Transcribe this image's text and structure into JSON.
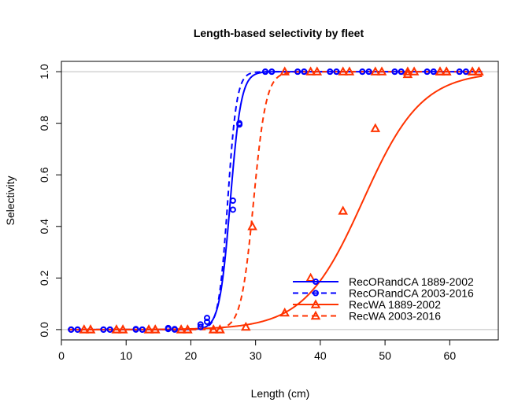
{
  "chart_data": {
    "type": "line",
    "title": "Length-based selectivity by fleet",
    "xlabel": "Length (cm)",
    "ylabel": "Selectivity",
    "xlim": [
      0,
      67.5
    ],
    "ylim": [
      -0.04,
      1.04
    ],
    "xticks": [
      "0",
      "10",
      "20",
      "30",
      "40",
      "50",
      "60"
    ],
    "yticks": [
      "0.0",
      "0.2",
      "0.4",
      "0.6",
      "0.8",
      "1.0"
    ],
    "reference_lines": {
      "y": [
        0,
        1
      ],
      "color": "#bebebe"
    },
    "legend_position": "bottom-right",
    "series": [
      {
        "name": "RecORandCA 1889-2002",
        "color": "#0000ff",
        "line_style": "solid",
        "marker": "circle",
        "curve": {
          "l50": 26.1,
          "slope": 1.19
        },
        "points": [
          [
            1.5,
            0
          ],
          [
            2.5,
            0
          ],
          [
            6.5,
            0
          ],
          [
            7.5,
            0
          ],
          [
            11.5,
            0.002
          ],
          [
            12.5,
            0
          ],
          [
            16.5,
            0.006
          ],
          [
            17.5,
            0.002
          ],
          [
            21.5,
            0.02
          ],
          [
            22.5,
            0.045
          ],
          [
            26.5,
            0.465
          ],
          [
            27.5,
            0.795
          ],
          [
            31.5,
            1
          ],
          [
            32.5,
            1
          ],
          [
            36.5,
            1
          ],
          [
            37.5,
            1
          ],
          [
            41.5,
            1
          ],
          [
            42.5,
            1
          ],
          [
            46.5,
            1
          ],
          [
            47.5,
            1
          ],
          [
            51.5,
            1
          ],
          [
            52.5,
            1
          ],
          [
            56.5,
            1
          ],
          [
            57.5,
            1
          ],
          [
            61.5,
            1
          ],
          [
            62.5,
            1
          ]
        ]
      },
      {
        "name": "RecORandCA 2003-2016",
        "color": "#0000ff",
        "line_style": "dashed",
        "marker": "circle",
        "curve": {
          "l50": 25.7,
          "slope": 1.43
        },
        "points": [
          [
            1.5,
            0
          ],
          [
            2.5,
            0
          ],
          [
            6.5,
            0
          ],
          [
            7.5,
            0
          ],
          [
            11.5,
            0
          ],
          [
            12.5,
            0
          ],
          [
            16.5,
            0.002
          ],
          [
            17.5,
            0
          ],
          [
            21.5,
            0.01
          ],
          [
            22.5,
            0.03
          ],
          [
            26.5,
            0.5
          ],
          [
            27.5,
            0.8
          ],
          [
            31.5,
            1
          ],
          [
            32.5,
            1
          ],
          [
            36.5,
            1
          ],
          [
            37.5,
            1
          ],
          [
            41.5,
            1
          ],
          [
            42.5,
            1
          ],
          [
            46.5,
            1
          ],
          [
            47.5,
            1
          ],
          [
            51.5,
            1
          ],
          [
            52.5,
            1
          ],
          [
            56.5,
            1
          ],
          [
            57.5,
            1
          ],
          [
            61.5,
            1
          ],
          [
            62.5,
            1
          ]
        ]
      },
      {
        "name": "RecWA 1889-2002",
        "color": "#ff3300",
        "line_style": "solid",
        "marker": "triangle",
        "curve": {
          "l50": 46.6,
          "slope": 0.22
        },
        "points": [
          [
            3.5,
            0
          ],
          [
            4.5,
            0
          ],
          [
            8.5,
            0
          ],
          [
            9.5,
            0
          ],
          [
            13.5,
            0
          ],
          [
            14.5,
            0
          ],
          [
            18.5,
            0
          ],
          [
            19.5,
            0
          ],
          [
            23.5,
            0
          ],
          [
            24.5,
            0
          ],
          [
            28.5,
            0.01
          ],
          [
            34.5,
            0.065
          ],
          [
            38.5,
            0.2
          ],
          [
            43.5,
            0.46
          ],
          [
            48.5,
            0.78
          ],
          [
            53.5,
            0.99
          ],
          [
            58.5,
            1
          ],
          [
            59.5,
            1
          ],
          [
            63.5,
            1
          ],
          [
            64.5,
            1
          ]
        ]
      },
      {
        "name": "RecWA 2003-2016",
        "color": "#ff3300",
        "line_style": "dashed",
        "marker": "triangle",
        "curve": {
          "l50": 29.7,
          "slope": 1.03
        },
        "points": [
          [
            3.5,
            0
          ],
          [
            4.5,
            0
          ],
          [
            8.5,
            0
          ],
          [
            9.5,
            0
          ],
          [
            13.5,
            0
          ],
          [
            14.5,
            0
          ],
          [
            18.5,
            0
          ],
          [
            19.5,
            0
          ],
          [
            23.5,
            0
          ],
          [
            24.5,
            0
          ],
          [
            29.5,
            0.4
          ],
          [
            34.5,
            1
          ],
          [
            38.5,
            1
          ],
          [
            39.5,
            1
          ],
          [
            43.5,
            1
          ],
          [
            44.5,
            1
          ],
          [
            48.5,
            1
          ],
          [
            49.5,
            1
          ],
          [
            53.5,
            1
          ],
          [
            54.5,
            1
          ],
          [
            58.5,
            1
          ],
          [
            59.5,
            1
          ],
          [
            63.5,
            1
          ],
          [
            64.5,
            1
          ]
        ]
      }
    ]
  }
}
